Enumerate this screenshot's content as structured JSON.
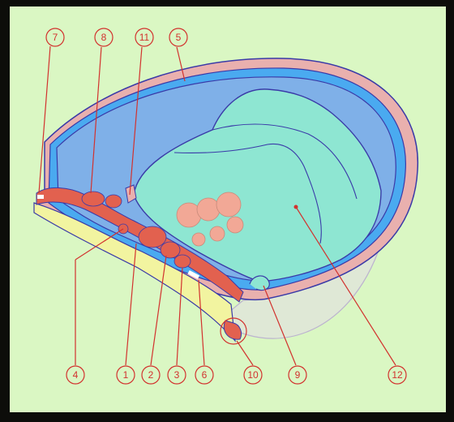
{
  "colors": {
    "slide_bg": "#daf7c3",
    "outer_border": "#0d0d0a",
    "outline": "#3a3aa8",
    "pink_layer": "#e9b0ae",
    "blue_layer": "#4aaaf0",
    "periblue": "#7fb0e8",
    "cavity": "#8ee6d2",
    "red_mass": "#e2614f",
    "salmon_circle": "#f2a896",
    "yellow_strip": "#f2f4a0",
    "lower_lobe": "#dfe8d6",
    "callout_red": "#d2322e"
  },
  "callouts": [
    {
      "id": "c7",
      "label": "7"
    },
    {
      "id": "c8",
      "label": "8"
    },
    {
      "id": "c11",
      "label": "11"
    },
    {
      "id": "c5",
      "label": "5"
    },
    {
      "id": "c4",
      "label": "4"
    },
    {
      "id": "c1",
      "label": "1"
    },
    {
      "id": "c2",
      "label": "2"
    },
    {
      "id": "c3",
      "label": "3"
    },
    {
      "id": "c6",
      "label": "6"
    },
    {
      "id": "c10",
      "label": "10"
    },
    {
      "id": "c9",
      "label": "9"
    },
    {
      "id": "c12",
      "label": "12"
    }
  ]
}
